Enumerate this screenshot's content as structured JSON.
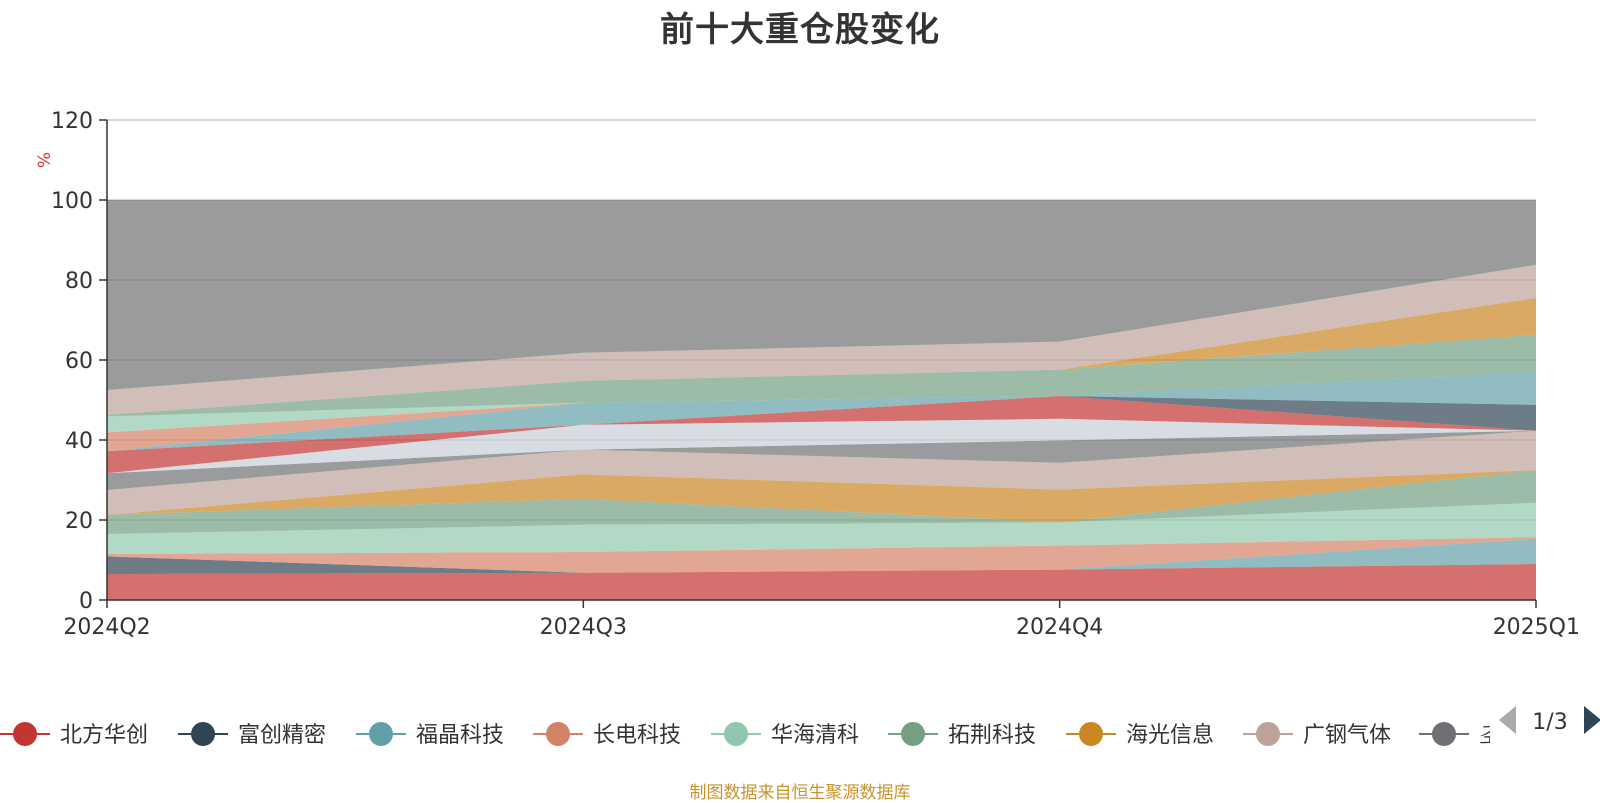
{
  "chart_data": {
    "type": "area",
    "title": "前十大重仓股变化",
    "ylabel": "%",
    "ylim": [
      0,
      120
    ],
    "yticks": [
      0,
      20,
      40,
      60,
      80,
      100,
      120
    ],
    "grid": true,
    "stacked": true,
    "categories": [
      "2024Q2",
      "2024Q3",
      "2024Q4",
      "2025Q1"
    ],
    "series": [
      {
        "name": "北方华创",
        "color": "#c23531",
        "values": [
          6.5,
          6.8,
          7.6,
          9.0
        ]
      },
      {
        "name": "富创精密",
        "color": "#2f4554",
        "values": [
          4.4,
          0,
          0,
          0
        ]
      },
      {
        "name": "福晶科技",
        "color": "#61a0a8",
        "values": [
          0,
          0,
          0,
          6.3
        ]
      },
      {
        "name": "长电科技",
        "color": "#d48265",
        "values": [
          0.6,
          5.2,
          6.0,
          0.4
        ]
      },
      {
        "name": "华海清科",
        "color": "#91c7ae",
        "values": [
          5.0,
          6.8,
          5.8,
          8.6
        ]
      },
      {
        "name": "拓荆科技",
        "color": "#749f83",
        "values": [
          4.8,
          6.5,
          0,
          8.2
        ]
      },
      {
        "name": "海光信息",
        "color": "#ca8622",
        "values": [
          0,
          6.1,
          8.2,
          0
        ]
      },
      {
        "name": "广钢气体",
        "color": "#bda29a",
        "values": [
          6.2,
          6.2,
          6.7,
          9.8
        ]
      },
      {
        "name": "",
        "color": "#6e7074",
        "values": [
          4.2,
          0,
          5.6,
          0
        ]
      },
      {
        "name": "",
        "color": "#c7ced9",
        "values": [
          0,
          6.2,
          5.4,
          0
        ]
      },
      {
        "name": "",
        "color": "#c23531",
        "values": [
          5.5,
          0,
          5.7,
          0
        ]
      },
      {
        "name": "",
        "color": "#2f4554",
        "values": [
          0,
          0,
          0,
          6.5
        ]
      },
      {
        "name": "",
        "color": "#61a0a8",
        "values": [
          0,
          5.5,
          0,
          8.3
        ]
      },
      {
        "name": "",
        "color": "#d48265",
        "values": [
          4.7,
          0,
          0,
          0
        ]
      },
      {
        "name": "",
        "color": "#91c7ae",
        "values": [
          4.0,
          0,
          0,
          0
        ]
      },
      {
        "name": "",
        "color": "#749f83",
        "values": [
          0.4,
          5.5,
          6.6,
          9.2
        ]
      },
      {
        "name": "",
        "color": "#ca8622",
        "values": [
          0,
          0,
          0,
          9.2
        ]
      },
      {
        "name": "",
        "color": "#bda29a",
        "values": [
          6.2,
          7.0,
          7.0,
          8.3
        ]
      },
      {
        "name": "",
        "color": "#6e7074",
        "values": [
          47.5,
          38.2,
          35.4,
          16.2
        ]
      }
    ],
    "legend": {
      "position": "bottom",
      "page": "1/3",
      "visible_items": [
        "北方华创",
        "富创精密",
        "福晶科技",
        "长电科技",
        "华海清科",
        "拓荆科技",
        "海光信息",
        "广钢气体",
        "𢀖"
      ]
    },
    "source_note": "制图数据来自恒生聚源数据库"
  },
  "ui": {
    "prev_page_icon": "triangle-left-icon",
    "next_page_icon": "triangle-right-icon"
  }
}
